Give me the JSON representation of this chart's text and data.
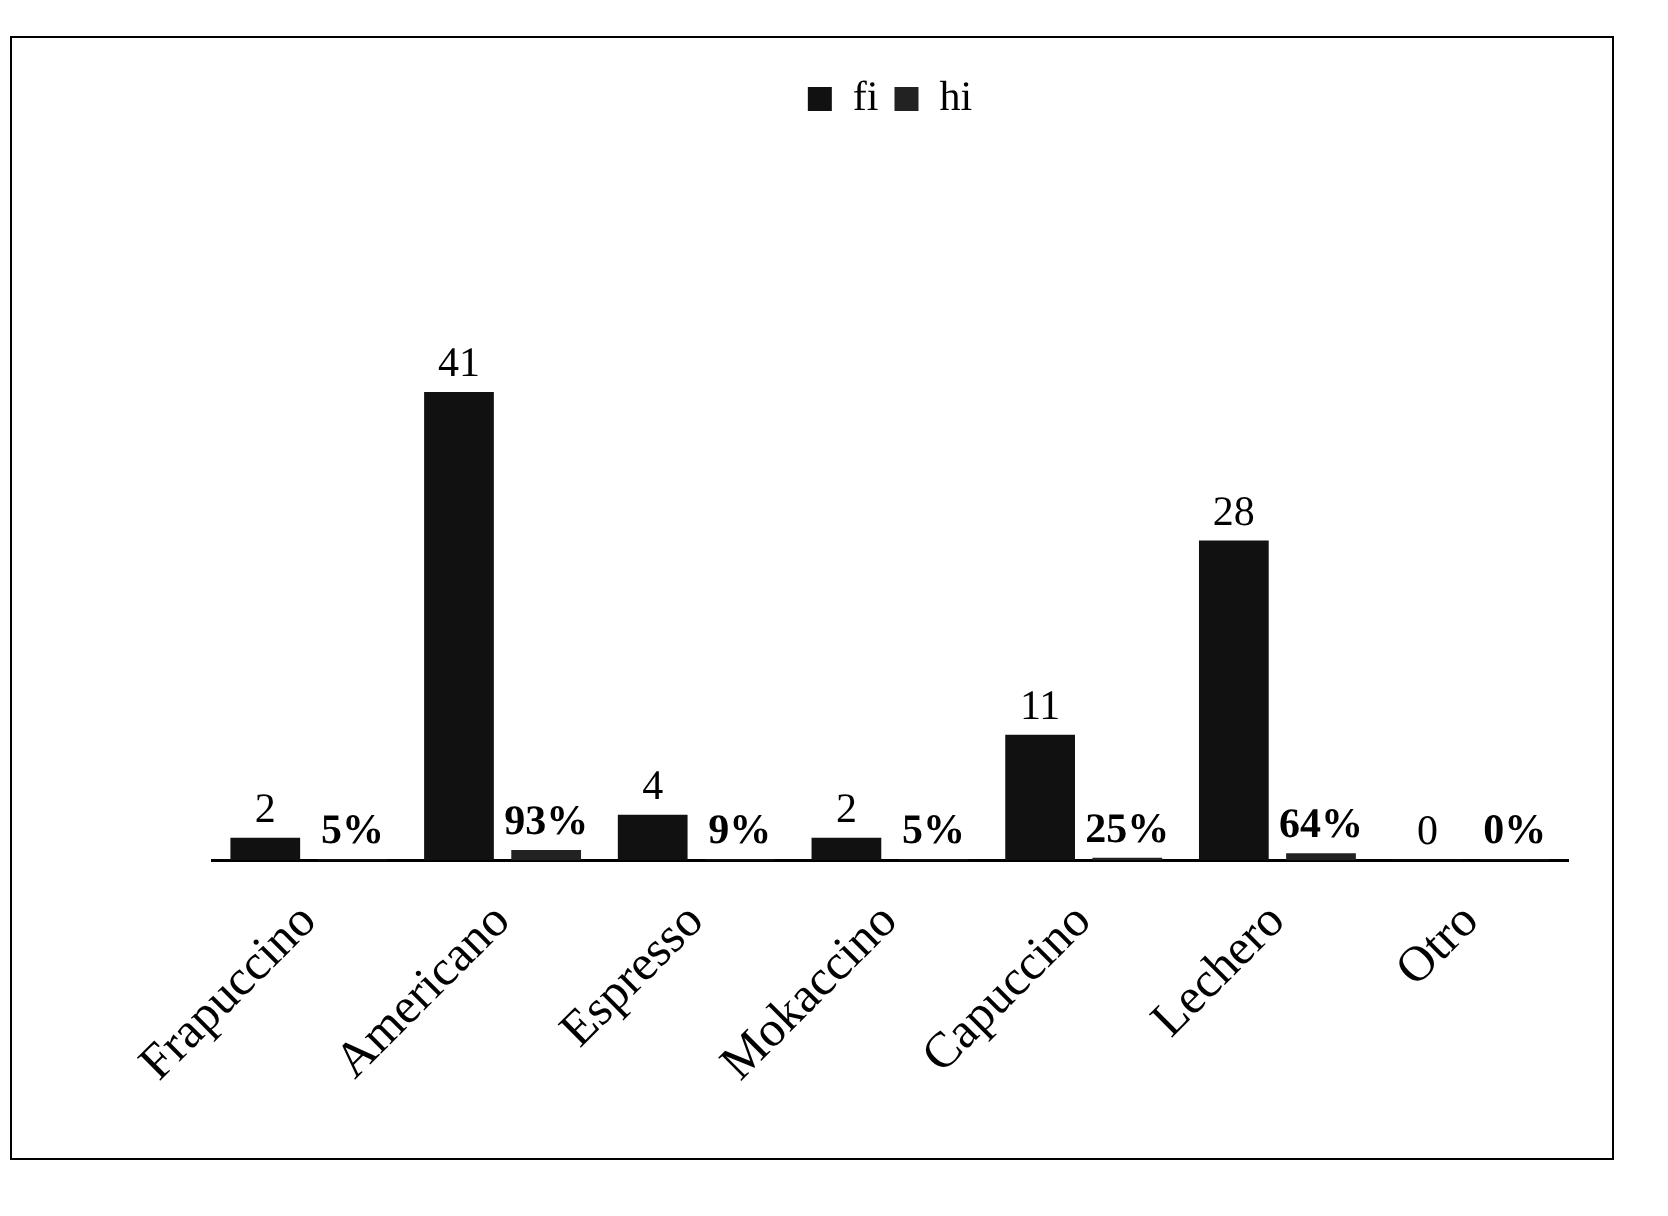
{
  "chart_data": {
    "type": "bar",
    "categories": [
      "Frapuccino",
      "Americano",
      "Espresso",
      "Mokaccino",
      "Capuccino",
      "Lechero",
      "Otro"
    ],
    "series": [
      {
        "name": "fi",
        "color": "#111111",
        "values": [
          2,
          41,
          4,
          2,
          11,
          28,
          0
        ],
        "value_labels": [
          "2",
          "41",
          "4",
          "2",
          "11",
          "28",
          "0"
        ]
      },
      {
        "name": "hi",
        "color": "#222222",
        "values": [
          0.05,
          0.93,
          0.09,
          0.05,
          0.25,
          0.64,
          0
        ],
        "value_labels": [
          "5%",
          "93%",
          "9%",
          "5%",
          "25%",
          "64%",
          "0%"
        ]
      }
    ],
    "legend": "top",
    "tick_labels": "x"
  }
}
